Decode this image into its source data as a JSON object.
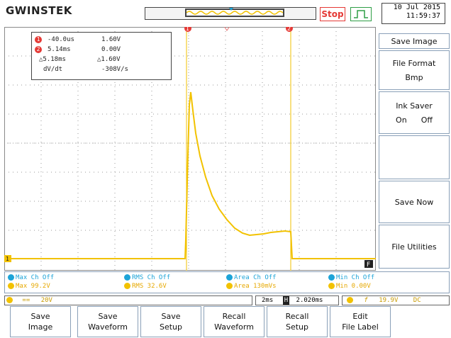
{
  "header": {
    "brand": "GWINSTEK",
    "stop_label": "Stop",
    "date": "10 Jul 2015",
    "time": "11:59:37"
  },
  "cursors": {
    "row1": {
      "marker": "1",
      "time": "-40.0us",
      "volt": "1.60V"
    },
    "row2": {
      "marker": "2",
      "time": "5.14ms",
      "volt": "0.00V"
    },
    "row3": {
      "time": "△5.18ms",
      "volt": "△1.60V"
    },
    "row4": {
      "label": "dV/dt",
      "value": "-308V/s"
    },
    "top_marker1": "1",
    "top_marker2": "2"
  },
  "channel_marker": "1",
  "waveform_label": "F",
  "side_menu": {
    "title": "Save Image",
    "file_format_label": "File Format",
    "file_format_value": "Bmp",
    "ink_saver_label": "Ink Saver",
    "ink_on": "On",
    "ink_off": "Off",
    "save_now": "Save Now",
    "file_utilities": "File Utilities"
  },
  "measurements": [
    {
      "line1": "Max Ch Off",
      "line2": "Max 99.2V",
      "badge1": "2",
      "badge2": "1"
    },
    {
      "line1": "RMS Ch Off",
      "line2": "RMS 32.6V",
      "badge1": "2",
      "badge2": "1"
    },
    {
      "line1": "Area Ch Off",
      "line2": "Area 130mVs",
      "badge1": "2",
      "badge2": "1"
    },
    {
      "line1": "Min Ch Off",
      "line2": "Min 0.00V",
      "badge1": "2",
      "badge2": "1"
    }
  ],
  "status": {
    "ch1_badge": "1",
    "ch1_coupling": "==",
    "ch1_scale": "20V",
    "timebase": "2ms",
    "h_badge": "H",
    "h_position": "2.020ms",
    "trig_badge": "1",
    "trig_slope": "f",
    "trig_level": "19.9V",
    "trig_coupling": "DC"
  },
  "bottom_menu": [
    {
      "line1": "Save",
      "line2": "Image"
    },
    {
      "line1": "Save",
      "line2": "Waveform"
    },
    {
      "line1": "Save",
      "line2": "Setup"
    },
    {
      "line1": "Recall",
      "line2": "Waveform"
    },
    {
      "line1": "Recall",
      "line2": "Setup"
    },
    {
      "line1": "Edit",
      "line2": "File Label"
    }
  ],
  "colors": {
    "trace": "#f2c200",
    "cursor": "#f2c200",
    "accent_red": "#e53935",
    "measure_cyan": "#1da4d8"
  },
  "icons": {
    "stop": "stop-button",
    "trigger": "pulse-trigger-icon"
  }
}
